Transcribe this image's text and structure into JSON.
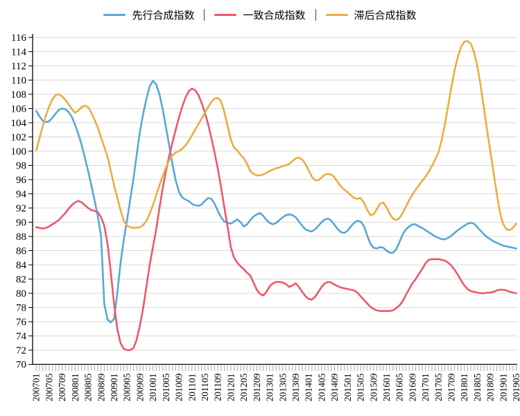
{
  "legend": {
    "items": [
      {
        "label": "先行合成指数",
        "color": "#58a7d6"
      },
      {
        "label": "一致合成指数",
        "color": "#f0566a"
      },
      {
        "label": "滞后合成指数",
        "color": "#ecac3f"
      }
    ]
  },
  "colors": {
    "grid": "#d9d9d9",
    "axis": "#000000",
    "x_tick": "#a6a6a6",
    "background": "#ffffff"
  },
  "chart_data": {
    "type": "line",
    "title": "",
    "x_unit": "month",
    "x_start": "200701",
    "x_end": "201905",
    "grid": true,
    "legend_position": "top",
    "y_axis": {
      "min": 70,
      "max": 116,
      "step": 2
    },
    "x_tick_labels": [
      "200701",
      "200705",
      "200709",
      "200801",
      "200805",
      "200809",
      "200901",
      "200905",
      "200909",
      "201001",
      "201005",
      "201009",
      "201101",
      "201105",
      "201109",
      "201201",
      "201205",
      "201209",
      "201301",
      "201305",
      "201309",
      "201401",
      "201405",
      "201409",
      "201501",
      "201505",
      "201509",
      "201601",
      "201605",
      "201609",
      "201701",
      "201705",
      "201709",
      "201801",
      "201805",
      "201809",
      "201901",
      "201905"
    ],
    "series": [
      {
        "name": "先行合成指数",
        "color": "#58a7d6",
        "values": [
          105.7,
          104.9,
          104.3,
          104.1,
          104.2,
          104.7,
          105.3,
          105.8,
          106.0,
          105.9,
          105.5,
          104.8,
          103.7,
          102.4,
          100.9,
          99.1,
          97.2,
          95.2,
          93.1,
          90.8,
          88.0,
          78.5,
          76.3,
          75.9,
          76.4,
          80.0,
          84.2,
          87.5,
          90.3,
          93.2,
          96.2,
          99.5,
          102.8,
          105.3,
          107.4,
          109.1,
          109.9,
          109.4,
          108.0,
          105.9,
          103.4,
          100.8,
          98.2,
          95.9,
          94.3,
          93.5,
          93.2,
          93.0,
          92.6,
          92.4,
          92.3,
          92.5,
          93.0,
          93.4,
          93.3,
          92.6,
          91.6,
          90.7,
          90.1,
          89.9,
          89.8,
          90.1,
          90.4,
          90.0,
          89.4,
          89.7,
          90.3,
          90.8,
          91.1,
          91.3,
          90.9,
          90.3,
          89.9,
          89.7,
          89.9,
          90.3,
          90.7,
          91.0,
          91.1,
          91.0,
          90.7,
          90.1,
          89.5,
          89.0,
          88.8,
          88.7,
          89.0,
          89.5,
          90.0,
          90.4,
          90.5,
          90.2,
          89.6,
          89.0,
          88.6,
          88.5,
          88.8,
          89.4,
          89.9,
          90.2,
          90.1,
          89.5,
          88.2,
          87.0,
          86.4,
          86.3,
          86.5,
          86.4,
          86.0,
          85.7,
          85.7,
          86.2,
          87.2,
          88.3,
          89.0,
          89.4,
          89.7,
          89.7,
          89.4,
          89.2,
          88.9,
          88.6,
          88.3,
          88.0,
          87.8,
          87.6,
          87.6,
          87.8,
          88.1,
          88.5,
          88.9,
          89.2,
          89.5,
          89.8,
          89.9,
          89.8,
          89.3,
          88.8,
          88.3,
          87.9,
          87.6,
          87.3,
          87.1,
          86.9,
          86.7,
          86.6,
          86.5,
          86.4,
          86.3
        ]
      },
      {
        "name": "一致合成指数",
        "color": "#f0566a",
        "values": [
          89.3,
          89.2,
          89.1,
          89.2,
          89.4,
          89.7,
          90.0,
          90.3,
          90.8,
          91.3,
          91.9,
          92.4,
          92.8,
          93.0,
          92.8,
          92.4,
          92.0,
          91.7,
          91.6,
          91.4,
          90.7,
          89.5,
          87.0,
          83.0,
          78.5,
          75.0,
          73.0,
          72.2,
          72.0,
          72.0,
          72.3,
          73.5,
          75.5,
          78.0,
          81.0,
          84.0,
          86.5,
          89.0,
          92.0,
          94.8,
          97.2,
          99.3,
          101.2,
          103.0,
          104.7,
          106.2,
          107.5,
          108.4,
          108.8,
          108.6,
          107.9,
          106.8,
          105.4,
          103.8,
          101.9,
          99.8,
          97.5,
          94.9,
          92.1,
          89.4,
          86.5,
          85.0,
          84.3,
          83.8,
          83.4,
          82.9,
          82.5,
          81.5,
          80.5,
          79.9,
          79.7,
          80.2,
          81.0,
          81.4,
          81.6,
          81.6,
          81.5,
          81.3,
          80.9,
          81.1,
          81.4,
          80.9,
          80.2,
          79.6,
          79.2,
          79.1,
          79.5,
          80.2,
          80.9,
          81.4,
          81.6,
          81.5,
          81.2,
          81.0,
          80.8,
          80.7,
          80.6,
          80.5,
          80.4,
          80.1,
          79.6,
          79.1,
          78.6,
          78.1,
          77.8,
          77.6,
          77.5,
          77.5,
          77.5,
          77.5,
          77.6,
          77.9,
          78.3,
          78.9,
          79.8,
          80.6,
          81.4,
          82.0,
          82.7,
          83.4,
          84.2,
          84.7,
          84.8,
          84.8,
          84.8,
          84.7,
          84.6,
          84.3,
          83.9,
          83.3,
          82.6,
          81.8,
          81.1,
          80.6,
          80.3,
          80.2,
          80.1,
          80.0,
          80.0,
          80.1,
          80.1,
          80.2,
          80.4,
          80.5,
          80.5,
          80.4,
          80.2,
          80.1,
          80.0
        ]
      },
      {
        "name": "滞后合成指数",
        "color": "#ecac3f",
        "values": [
          100.1,
          101.8,
          103.5,
          105.0,
          106.3,
          107.3,
          107.9,
          108.0,
          107.7,
          107.2,
          106.6,
          105.9,
          105.4,
          105.7,
          106.2,
          106.4,
          106.2,
          105.4,
          104.4,
          103.3,
          101.9,
          100.6,
          99.2,
          97.2,
          95.2,
          93.5,
          91.7,
          90.2,
          89.5,
          89.3,
          89.2,
          89.2,
          89.3,
          89.6,
          90.2,
          91.2,
          92.4,
          93.8,
          95.2,
          96.5,
          97.7,
          98.7,
          99.4,
          99.8,
          100.0,
          100.3,
          100.8,
          101.4,
          102.2,
          103.0,
          103.8,
          104.6,
          105.4,
          106.2,
          106.9,
          107.4,
          107.5,
          107.0,
          105.5,
          103.6,
          101.6,
          100.5,
          100.1,
          99.5,
          99.0,
          98.2,
          97.2,
          96.8,
          96.6,
          96.6,
          96.7,
          97.0,
          97.2,
          97.4,
          97.6,
          97.7,
          97.9,
          98.0,
          98.2,
          98.6,
          99.0,
          99.1,
          98.8,
          98.2,
          97.3,
          96.4,
          95.9,
          95.9,
          96.3,
          96.7,
          96.8,
          96.7,
          96.3,
          95.6,
          95.0,
          94.6,
          94.2,
          93.8,
          93.4,
          93.3,
          93.4,
          92.8,
          91.8,
          91.0,
          91.1,
          91.8,
          92.6,
          92.8,
          92.1,
          91.2,
          90.5,
          90.3,
          90.6,
          91.3,
          92.2,
          93.1,
          93.9,
          94.6,
          95.2,
          95.8,
          96.4,
          97.1,
          97.9,
          98.8,
          99.8,
          101.5,
          103.8,
          106.4,
          109.0,
          111.4,
          113.3,
          114.7,
          115.4,
          115.5,
          115.1,
          113.9,
          111.9,
          109.3,
          106.2,
          103.0,
          100.0,
          97.0,
          94.0,
          91.3,
          89.7,
          89.0,
          88.9,
          89.2,
          89.8
        ]
      }
    ]
  }
}
